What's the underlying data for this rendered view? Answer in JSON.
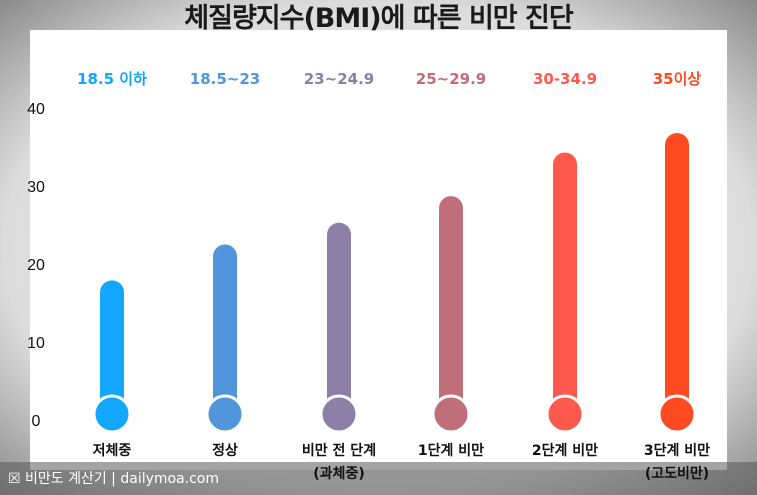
{
  "title": "체질량지수(BMI)에 따른 비만 진단",
  "footer": "☒ 비만도 계산기 | dailymoa.com",
  "chart_data": {
    "type": "bar",
    "title": "체질량지수(BMI)에 따른 비만 진단",
    "categories": [
      {
        "name": "저체중",
        "name2": "",
        "range": "18.5 이하",
        "color": "#12a6fd"
      },
      {
        "name": "정상",
        "name2": "",
        "range": "18.5~23",
        "color": "#5196dc"
      },
      {
        "name": "비만 전 단계",
        "name2": "(과체중)",
        "range": "23~24.9",
        "color": "#8c80a8"
      },
      {
        "name": "1단계 비만",
        "name2": "",
        "range": "25~29.9",
        "color": "#c06f7a"
      },
      {
        "name": "2단계 비만",
        "name2": "",
        "range": "30-34.9",
        "color": "#fd5a4d"
      },
      {
        "name": "3단계 비만",
        "name2": "(고도비만)",
        "range": "35이상",
        "color": "#ff4a22"
      }
    ],
    "values": [
      17.9,
      22.5,
      25.3,
      28.7,
      34.3,
      36.8
    ],
    "yticks": [
      "0",
      "10",
      "20",
      "30",
      "40"
    ],
    "ylim": [
      0,
      40
    ],
    "grid": false,
    "xlabel": "",
    "ylabel": ""
  }
}
